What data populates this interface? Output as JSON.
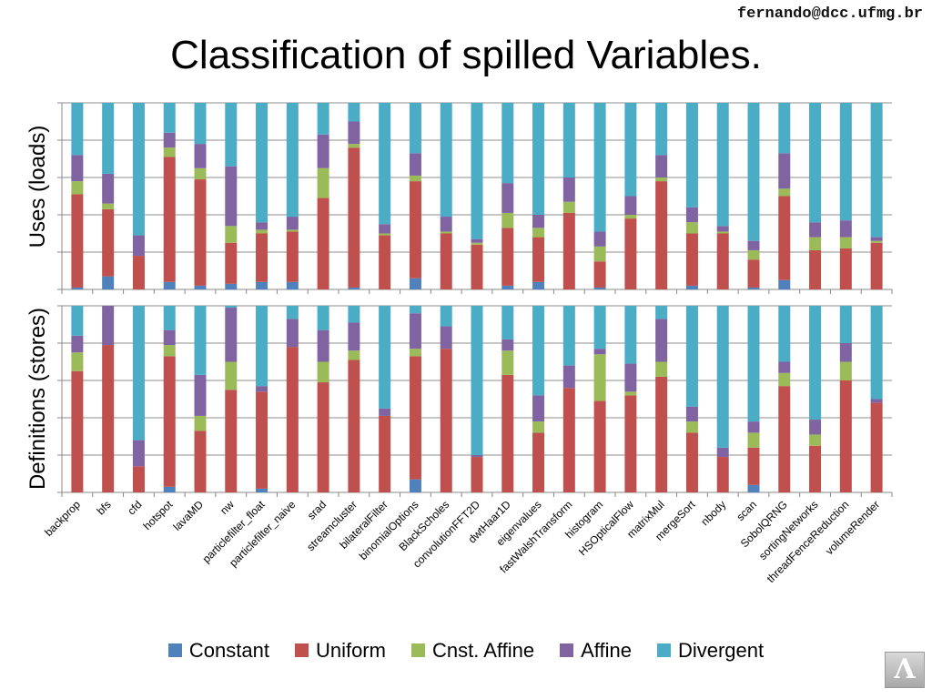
{
  "header": {
    "email": "fernando@dcc.ufmg.br",
    "title": "Classification of spilled Variables."
  },
  "footer": {
    "logo_glyph": "Λ"
  },
  "chart_data": [
    {
      "type": "bar",
      "stacked": true,
      "percent": true,
      "ylabel": "Uses (loads)",
      "categories": [
        "backprop",
        "bfs",
        "cfd",
        "hotspot",
        "lavaMD",
        "nw",
        "particlefilter_float",
        "particlefilter_naive",
        "srad",
        "streamcluster",
        "bilateralFilter",
        "binomialOptions",
        "BlackScholes",
        "convolutionFFT2D",
        "dwtHaar1D",
        "eigenvalues",
        "fastWalshTransform",
        "histogram",
        "HSOpticalFlow",
        "matrixMul",
        "mergeSort",
        "nbody",
        "scan",
        "SobolQRNG",
        "sortingNetworks",
        "threadFenceReduction",
        "volumeRender"
      ],
      "series": [
        {
          "name": "Constant",
          "color": "#4f81bd",
          "values": [
            1,
            7,
            0,
            4,
            2,
            3,
            4,
            4,
            0,
            1,
            0,
            6,
            0,
            0,
            2,
            4,
            0,
            1,
            0,
            0,
            2,
            0,
            1,
            5,
            0,
            0,
            0
          ]
        },
        {
          "name": "Uniform",
          "color": "#c0504d",
          "values": [
            50,
            36,
            18,
            67,
            57,
            22,
            26,
            27,
            49,
            75,
            29,
            52,
            30,
            24,
            31,
            24,
            41,
            14,
            38,
            58,
            28,
            30,
            15,
            45,
            21,
            22,
            25
          ]
        },
        {
          "name": "Cnst. Affine",
          "color": "#9bbb59",
          "values": [
            7,
            3,
            0,
            5,
            6,
            9,
            2,
            1,
            16,
            2,
            1,
            3,
            1,
            1,
            8,
            5,
            6,
            8,
            2,
            2,
            6,
            1,
            5,
            4,
            7,
            6,
            1
          ]
        },
        {
          "name": "Affine",
          "color": "#8064a2",
          "values": [
            14,
            16,
            11,
            8,
            13,
            32,
            4,
            7,
            18,
            12,
            5,
            12,
            8,
            2,
            16,
            7,
            13,
            8,
            10,
            12,
            8,
            3,
            5,
            19,
            8,
            9,
            2
          ]
        },
        {
          "name": "Divergent",
          "color": "#4bacc6",
          "values": [
            28,
            38,
            71,
            16,
            22,
            34,
            64,
            61,
            17,
            10,
            65,
            27,
            61,
            73,
            43,
            60,
            40,
            69,
            50,
            28,
            56,
            66,
            74,
            27,
            64,
            63,
            72
          ]
        }
      ]
    },
    {
      "type": "bar",
      "stacked": true,
      "percent": true,
      "ylabel": "Definitions (stores)",
      "categories": [
        "backprop",
        "bfs",
        "cfd",
        "hotspot",
        "lavaMD",
        "nw",
        "particlefilter_float",
        "particlefilter_naive",
        "srad",
        "streamcluster",
        "bilateralFilter",
        "binomialOptions",
        "BlackScholes",
        "convolutionFFT2D",
        "dwtHaar1D",
        "eigenvalues",
        "fastWalshTransform",
        "histogram",
        "HSOpticalFlow",
        "matrixMul",
        "mergeSort",
        "nbody",
        "scan",
        "SobolQRNG",
        "sortingNetworks",
        "threadFenceReduction",
        "volumeRender"
      ],
      "series": [
        {
          "name": "Constant",
          "color": "#4f81bd",
          "values": [
            0,
            0,
            0,
            3,
            0,
            0,
            2,
            0,
            0,
            0,
            0,
            7,
            0,
            0,
            0,
            0,
            0,
            0,
            0,
            0,
            0,
            0,
            4,
            0,
            0,
            0,
            0
          ]
        },
        {
          "name": "Uniform",
          "color": "#c0504d",
          "values": [
            65,
            79,
            14,
            70,
            33,
            55,
            52,
            78,
            59,
            71,
            41,
            66,
            77,
            19,
            63,
            32,
            56,
            49,
            52,
            62,
            32,
            19,
            20,
            57,
            25,
            60,
            48
          ]
        },
        {
          "name": "Cnst. Affine",
          "color": "#9bbb59",
          "values": [
            10,
            0,
            0,
            6,
            8,
            15,
            0,
            0,
            11,
            5,
            0,
            4,
            0,
            0,
            13,
            6,
            0,
            25,
            2,
            8,
            6,
            0,
            8,
            7,
            6,
            10,
            0
          ]
        },
        {
          "name": "Affine",
          "color": "#8064a2",
          "values": [
            9,
            21,
            14,
            8,
            22,
            29,
            3,
            15,
            17,
            15,
            4,
            19,
            12,
            1,
            6,
            14,
            12,
            3,
            15,
            23,
            8,
            5,
            6,
            6,
            8,
            10,
            2
          ]
        },
        {
          "name": "Divergent",
          "color": "#4bacc6",
          "values": [
            16,
            0,
            72,
            13,
            37,
            1,
            43,
            7,
            13,
            9,
            55,
            4,
            11,
            80,
            18,
            48,
            32,
            23,
            31,
            7,
            54,
            76,
            62,
            30,
            61,
            20,
            50
          ]
        }
      ]
    }
  ]
}
